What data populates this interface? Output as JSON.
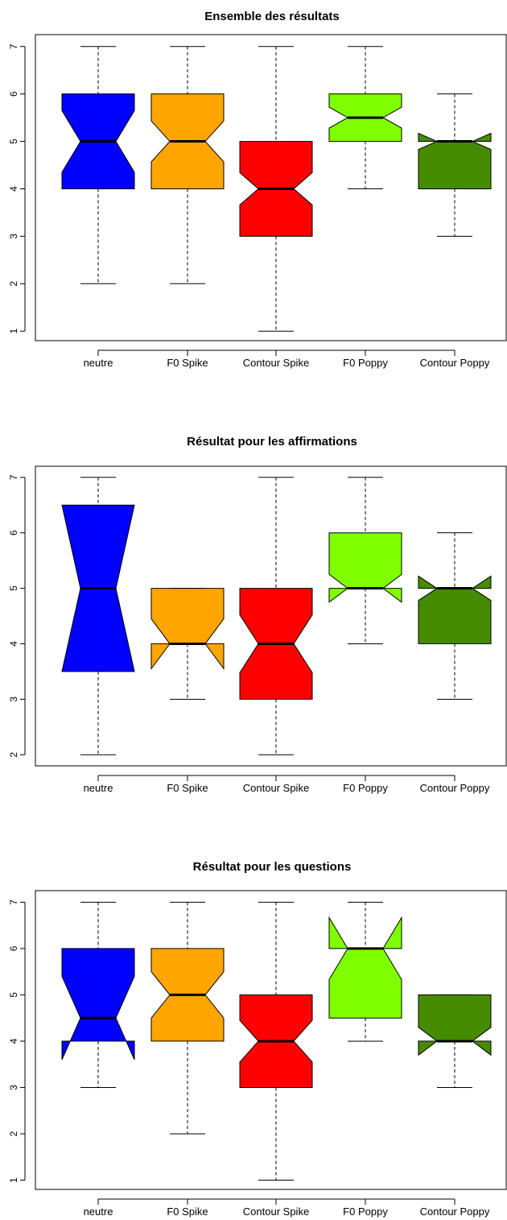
{
  "chart_data": [
    {
      "type": "boxplot",
      "notched": true,
      "title": "Ensemble des résultats",
      "xlabel": "",
      "ylabel": "",
      "ylim": [
        0.8,
        7.25
      ],
      "yticks": [
        1,
        2,
        3,
        4,
        5,
        6,
        7
      ],
      "categories": [
        "neutre",
        "F0 Spike",
        "Contour Spike",
        "F0 Poppy",
        "Contour Poppy"
      ],
      "colors": [
        "#0000ff",
        "#ffa500",
        "#ff0000",
        "#7fff00",
        "#458b00"
      ],
      "boxes": [
        {
          "min": 2,
          "q1": 4,
          "median": 5,
          "q3": 6,
          "max": 7,
          "notch_low": 4.35,
          "notch_high": 5.65
        },
        {
          "min": 2,
          "q1": 4,
          "median": 5,
          "q3": 6,
          "max": 7,
          "notch_low": 4.57,
          "notch_high": 5.43
        },
        {
          "min": 1,
          "q1": 3,
          "median": 4,
          "q3": 5,
          "max": 7,
          "notch_low": 3.66,
          "notch_high": 4.34
        },
        {
          "min": 4,
          "q1": 5,
          "median": 5.5,
          "q3": 6,
          "max": 7,
          "notch_low": 5.28,
          "notch_high": 5.72
        },
        {
          "min": 3,
          "q1": 4,
          "median": 5,
          "q3": 5,
          "max": 6,
          "notch_low": 4.83,
          "notch_high": 5.17
        }
      ],
      "grid": false,
      "legend": "none"
    },
    {
      "type": "boxplot",
      "notched": true,
      "title": "Résultat pour les affirmations",
      "xlabel": "",
      "ylabel": "",
      "ylim": [
        1.8,
        7.2
      ],
      "yticks": [
        2,
        3,
        4,
        5,
        6,
        7
      ],
      "categories": [
        "neutre",
        "F0 Spike",
        "Contour Spike",
        "F0 Poppy",
        "Contour Poppy"
      ],
      "colors": [
        "#0000ff",
        "#ffa500",
        "#ff0000",
        "#7fff00",
        "#458b00"
      ],
      "boxes": [
        {
          "min": 2,
          "q1": 3.5,
          "median": 5,
          "q3": 6.5,
          "max": 7,
          "notch_low": 3.5,
          "notch_high": 6.5
        },
        {
          "min": 3,
          "q1": 4,
          "median": 4,
          "q3": 5,
          "max": 5,
          "notch_low": 3.55,
          "notch_high": 4.45
        },
        {
          "min": 2,
          "q1": 3,
          "median": 4,
          "q3": 5,
          "max": 7,
          "notch_low": 3.48,
          "notch_high": 4.52
        },
        {
          "min": 4,
          "q1": 5,
          "median": 5,
          "q3": 6,
          "max": 7,
          "notch_low": 4.75,
          "notch_high": 5.25
        },
        {
          "min": 3,
          "q1": 4,
          "median": 5,
          "q3": 5,
          "max": 6,
          "notch_low": 4.78,
          "notch_high": 5.22
        }
      ],
      "grid": false,
      "legend": "none"
    },
    {
      "type": "boxplot",
      "notched": true,
      "title": "Résultat pour les questions",
      "xlabel": "",
      "ylabel": "",
      "ylim": [
        0.8,
        7.25
      ],
      "yticks": [
        1,
        2,
        3,
        4,
        5,
        6,
        7
      ],
      "categories": [
        "neutre",
        "F0 Spike",
        "Contour Spike",
        "F0 Poppy",
        "Contour Poppy"
      ],
      "colors": [
        "#0000ff",
        "#ffa500",
        "#ff0000",
        "#7fff00",
        "#458b00"
      ],
      "boxes": [
        {
          "min": 3,
          "q1": 4,
          "median": 4.5,
          "q3": 6,
          "max": 7,
          "notch_low": 3.6,
          "notch_high": 5.4
        },
        {
          "min": 2,
          "q1": 4,
          "median": 5,
          "q3": 6,
          "max": 7,
          "notch_low": 4.5,
          "notch_high": 5.5
        },
        {
          "min": 1,
          "q1": 3,
          "median": 4,
          "q3": 5,
          "max": 7,
          "notch_low": 3.55,
          "notch_high": 4.45
        },
        {
          "min": 4,
          "q1": 4.5,
          "median": 6,
          "q3": 6,
          "max": 7,
          "notch_low": 5.33,
          "notch_high": 6.67
        },
        {
          "min": 3,
          "q1": 4,
          "median": 4,
          "q3": 5,
          "max": 5,
          "notch_low": 3.7,
          "notch_high": 4.3
        }
      ],
      "grid": false,
      "legend": "none"
    }
  ]
}
